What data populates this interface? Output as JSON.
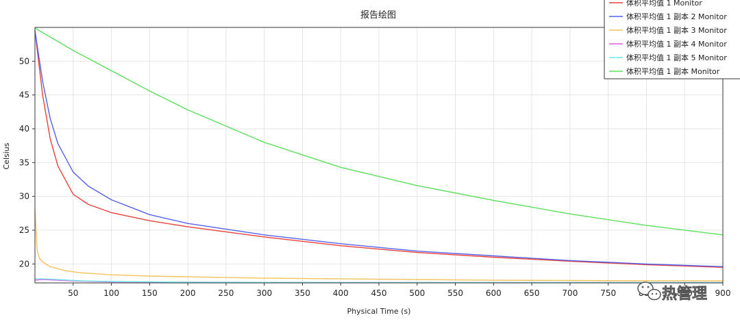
{
  "chart_data": {
    "type": "line",
    "title": "报告绘图",
    "xlabel": "Physical Time (s)",
    "ylabel": "Celsius",
    "xlim": [
      0,
      900
    ],
    "ylim": [
      17.2,
      55
    ],
    "x_ticks": [
      50,
      100,
      150,
      200,
      250,
      300,
      350,
      400,
      450,
      500,
      550,
      600,
      650,
      700,
      750,
      800,
      850,
      900
    ],
    "x_tick_labels": [
      "50",
      "100",
      "150",
      "200",
      "250",
      "300",
      "350",
      "400",
      "450",
      "500",
      "550",
      "600",
      "650",
      "700",
      "750",
      "800",
      "850",
      "900"
    ],
    "y_ticks": [
      20,
      25,
      30,
      35,
      40,
      45,
      50
    ],
    "y_tick_labels": [
      "20",
      "25",
      "30",
      "35",
      "40",
      "45",
      "50"
    ],
    "grid": true,
    "legend_position": "top-right",
    "series": [
      {
        "name": "体积平均值 1 Monitor",
        "color": "#e8413a",
        "x": [
          0,
          10,
          20,
          30,
          50,
          70,
          100,
          150,
          200,
          300,
          400,
          500,
          600,
          700,
          800,
          900
        ],
        "y": [
          54.5,
          45.0,
          38.5,
          34.5,
          30.3,
          28.8,
          27.6,
          26.4,
          25.5,
          24.0,
          22.7,
          21.7,
          21.0,
          20.4,
          19.9,
          19.5
        ]
      },
      {
        "name": "体积平均值 1 副本 2 Monitor",
        "color": "#5560e8",
        "x": [
          0,
          10,
          20,
          30,
          50,
          70,
          100,
          150,
          200,
          300,
          400,
          500,
          600,
          700,
          800,
          900
        ],
        "y": [
          54.5,
          47.0,
          41.5,
          37.8,
          33.6,
          31.5,
          29.5,
          27.3,
          26.0,
          24.3,
          23.0,
          21.9,
          21.2,
          20.5,
          20.0,
          19.6
        ]
      },
      {
        "name": "体积平均值 1 副本 3 Monitor",
        "color": "#f2c25a",
        "x": [
          0,
          3,
          6,
          10,
          20,
          40,
          60,
          100,
          150,
          200,
          300,
          400,
          500,
          600,
          700,
          800,
          900
        ],
        "y": [
          28.0,
          22.0,
          20.8,
          20.3,
          19.6,
          19.0,
          18.7,
          18.4,
          18.2,
          18.1,
          17.9,
          17.8,
          17.7,
          17.6,
          17.55,
          17.5,
          17.5
        ]
      },
      {
        "name": "体积平均值 1 副本 4 Monitor",
        "color": "#e05ee0",
        "x": [
          0,
          10,
          30,
          60,
          100,
          200,
          400,
          600,
          900
        ],
        "y": [
          17.6,
          17.7,
          17.6,
          17.45,
          17.35,
          17.3,
          17.25,
          17.25,
          17.25
        ]
      },
      {
        "name": "体积平均值 1 副本 5 Monitor",
        "color": "#6ee6e6",
        "x": [
          0,
          10,
          30,
          60,
          100,
          200,
          400,
          600,
          900
        ],
        "y": [
          17.8,
          17.8,
          17.7,
          17.5,
          17.4,
          17.3,
          17.25,
          17.25,
          17.25
        ]
      },
      {
        "name": "体积平均值 1 副本 Monitor",
        "color": "#5ae05a",
        "x": [
          0,
          50,
          100,
          150,
          200,
          300,
          400,
          500,
          600,
          700,
          800,
          900
        ],
        "y": [
          54.9,
          51.6,
          48.6,
          45.6,
          42.8,
          38.0,
          34.3,
          31.6,
          29.4,
          27.4,
          25.7,
          24.3
        ]
      }
    ]
  },
  "watermark": {
    "text": "热管理",
    "icon": "wechat-icon"
  }
}
